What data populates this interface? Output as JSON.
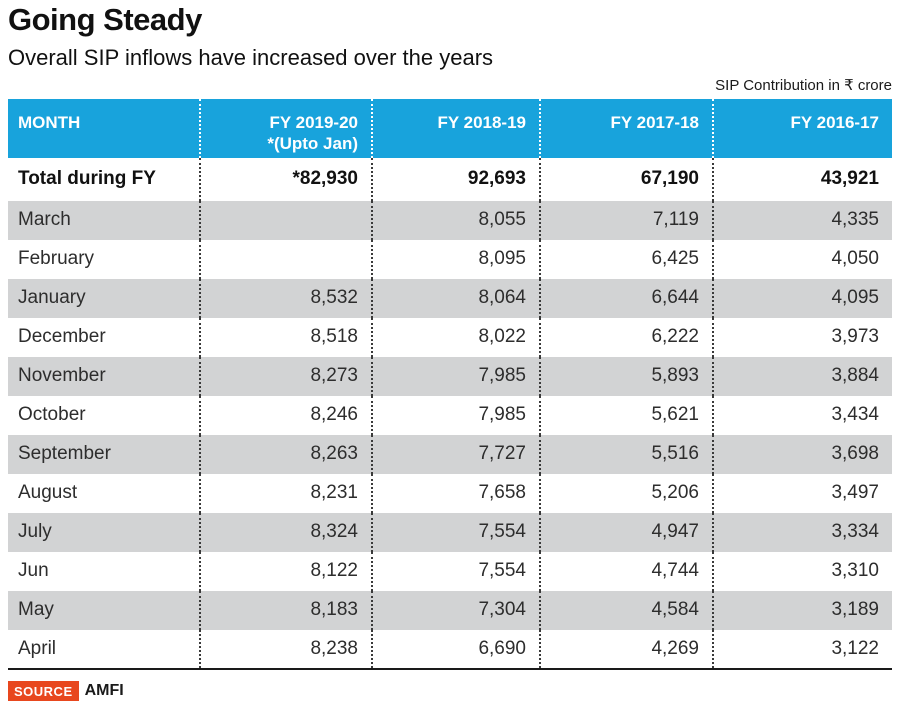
{
  "header": {
    "title": "Going Steady",
    "subtitle": "Overall SIP inflows have increased over the years",
    "unit_note": "SIP Contribution in ₹ crore"
  },
  "table": {
    "columns": [
      "MONTH",
      "FY 2019-20",
      "FY 2018-19",
      "FY 2017-18",
      "FY 2016-17"
    ],
    "column2_subnote": "*(Upto Jan)",
    "total_row": {
      "label": "Total during FY",
      "values": [
        "*82,930",
        "92,693",
        "67,190",
        "43,921"
      ]
    },
    "rows": [
      {
        "month": "March",
        "values": [
          "",
          "8,055",
          "7,119",
          "4,335"
        ]
      },
      {
        "month": "February",
        "values": [
          "",
          "8,095",
          "6,425",
          "4,050"
        ]
      },
      {
        "month": "January",
        "values": [
          "8,532",
          "8,064",
          "6,644",
          "4,095"
        ]
      },
      {
        "month": "December",
        "values": [
          "8,518",
          "8,022",
          "6,222",
          "3,973"
        ]
      },
      {
        "month": "November",
        "values": [
          "8,273",
          "7,985",
          "5,893",
          "3,884"
        ]
      },
      {
        "month": "October",
        "values": [
          "8,246",
          "7,985",
          "5,621",
          "3,434"
        ]
      },
      {
        "month": "September",
        "values": [
          "8,263",
          "7,727",
          "5,516",
          "3,698"
        ]
      },
      {
        "month": "August",
        "values": [
          "8,231",
          "7,658",
          "5,206",
          "3,497"
        ]
      },
      {
        "month": "July",
        "values": [
          "8,324",
          "7,554",
          "4,947",
          "3,334"
        ]
      },
      {
        "month": "Jun",
        "values": [
          "8,122",
          "7,554",
          "4,744",
          "3,310"
        ]
      },
      {
        "month": "May",
        "values": [
          "8,183",
          "7,304",
          "4,584",
          "3,189"
        ]
      },
      {
        "month": "April",
        "values": [
          "8,238",
          "6,690",
          "4,269",
          "3,122"
        ]
      }
    ]
  },
  "footer": {
    "source_label": "SOURCE",
    "source_value": "AMFI"
  },
  "colors": {
    "header_bg": "#18a3dc",
    "alt_row_bg": "#d2d3d4",
    "source_badge_bg": "#e8471e",
    "table_bottom_border": "#1a1a1a"
  },
  "chart_data": {
    "type": "table",
    "title": "Going Steady",
    "subtitle": "Overall SIP inflows have increased over the years",
    "unit": "SIP Contribution in ₹ crore",
    "categories": [
      "March",
      "February",
      "January",
      "December",
      "November",
      "October",
      "September",
      "August",
      "July",
      "Jun",
      "May",
      "April"
    ],
    "series": [
      {
        "name": "FY 2019-20 *(Upto Jan)",
        "total": 82930,
        "total_note": "*82,930",
        "values": [
          null,
          null,
          8532,
          8518,
          8273,
          8246,
          8263,
          8231,
          8324,
          8122,
          8183,
          8238
        ]
      },
      {
        "name": "FY 2018-19",
        "total": 92693,
        "values": [
          8055,
          8095,
          8064,
          8022,
          7985,
          7985,
          7727,
          7658,
          7554,
          7554,
          7304,
          6690
        ]
      },
      {
        "name": "FY 2017-18",
        "total": 67190,
        "values": [
          7119,
          6425,
          6644,
          6222,
          5893,
          5621,
          5516,
          5206,
          4947,
          4744,
          4584,
          4269
        ]
      },
      {
        "name": "FY 2016-17",
        "total": 43921,
        "values": [
          4335,
          4050,
          4095,
          3973,
          3884,
          3434,
          3698,
          3497,
          3334,
          3310,
          3189,
          3122
        ]
      }
    ],
    "source": "AMFI"
  }
}
